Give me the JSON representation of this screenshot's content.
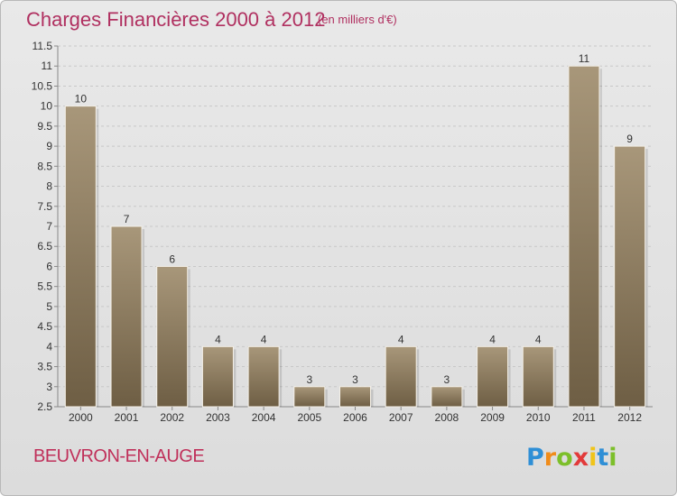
{
  "header": {
    "title": "Charges Financières 2000 à 2012",
    "unit": "(en milliers d'€)"
  },
  "footer": {
    "commune": "BEUVRON-EN-AUGE",
    "brand": "Proxiti"
  },
  "colors": {
    "title": "#b03060",
    "bar_light": "#a8977a",
    "bar_dark": "#6e5e44",
    "grid": "#c8c8c8"
  },
  "chart_data": {
    "type": "bar",
    "categories": [
      "2000",
      "2001",
      "2002",
      "2003",
      "2004",
      "2005",
      "2006",
      "2007",
      "2008",
      "2009",
      "2010",
      "2011",
      "2012"
    ],
    "values": [
      10,
      7,
      6,
      4,
      4,
      3,
      3,
      4,
      3,
      4,
      4,
      11,
      9
    ],
    "data_labels": [
      "10",
      "7",
      "6",
      "4",
      "4",
      "3",
      "3",
      "4",
      "3",
      "4",
      "4",
      "11",
      "9"
    ],
    "ylim": [
      2.5,
      11.5
    ],
    "yticks": [
      "2.5",
      "3",
      "3.5",
      "4",
      "4.5",
      "5",
      "5.5",
      "6",
      "6.5",
      "7",
      "7.5",
      "8",
      "8.5",
      "9",
      "9.5",
      "10",
      "10.5",
      "11",
      "11.5"
    ],
    "grid": true
  }
}
